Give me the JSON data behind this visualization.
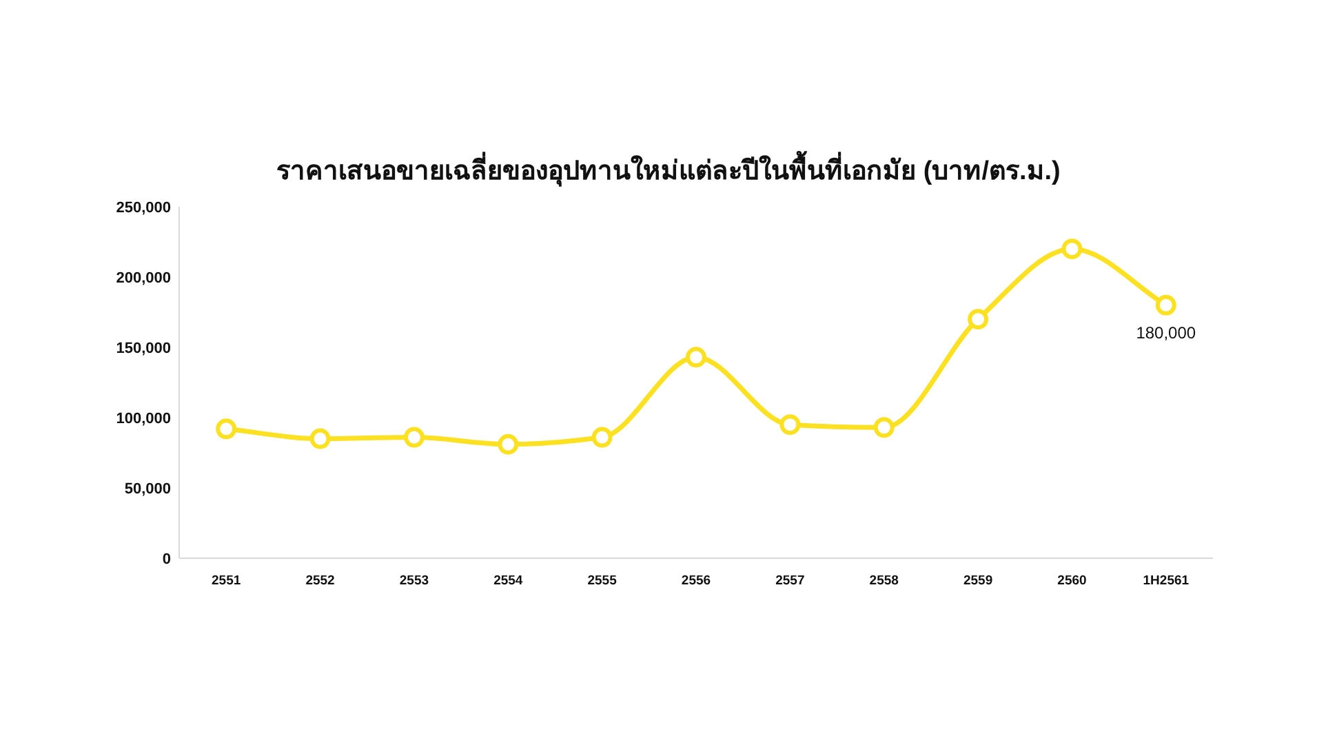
{
  "chart_data": {
    "type": "line",
    "title": "ราคาเสนอขายเฉลี่ยของอุปทานใหม่แต่ละปีในพื้นที่เอกมัย (บาท/ตร.ม.)",
    "categories": [
      "2551",
      "2552",
      "2553",
      "2554",
      "2555",
      "2556",
      "2557",
      "2558",
      "2559",
      "2560",
      "1H2561"
    ],
    "series": [
      {
        "color": "#fbe122",
        "values": [
          92000,
          85000,
          86000,
          81000,
          86000,
          143000,
          95000,
          93000,
          170000,
          220000,
          180000
        ],
        "value_labels": [
          null,
          null,
          null,
          null,
          null,
          null,
          null,
          null,
          null,
          null,
          "180,000"
        ]
      }
    ],
    "ylim": [
      0,
      250000
    ],
    "yticks": [
      {
        "value": 0,
        "label": "0"
      },
      {
        "value": 50000,
        "label": "50,000"
      },
      {
        "value": 100000,
        "label": "100,000"
      },
      {
        "value": 150000,
        "label": "150,000"
      },
      {
        "value": 200000,
        "label": "200,000"
      },
      {
        "value": 250000,
        "label": "250,000"
      }
    ],
    "marker": "circle",
    "line_style": "solid",
    "grid": false
  }
}
